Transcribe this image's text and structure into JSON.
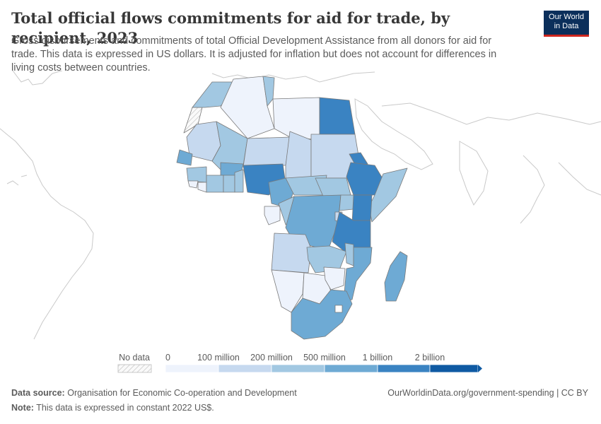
{
  "header": {
    "title": "Total official flows commitments for aid for trade, by recipient, 2023",
    "subtitle": "Gross disbursements and commitments of total Official Development Assistance from all donors for aid for trade. This data is expressed in US dollars. It is adjusted for inflation but does not account for differences in living costs between countries."
  },
  "logo": {
    "line1": "Our World",
    "line2": "in Data"
  },
  "legend": {
    "no_data_label": "No data",
    "tick_labels": [
      "0",
      "100 million",
      "200 million",
      "500 million",
      "1 billion",
      "2 billion"
    ],
    "colors": [
      "#eef3fc",
      "#c6d9ef",
      "#a2c8e2",
      "#6eaad4",
      "#3a83c2",
      "#0f5aa3"
    ]
  },
  "footer": {
    "source_label": "Data source:",
    "source_text": "Organisation for Economic Co-operation and Development",
    "note_label": "Note:",
    "note_text": "This data is expressed in constant 2022 US$.",
    "url": "OurWorldinData.org/government-spending | CC BY"
  },
  "colors": {
    "background": "#ffffff",
    "border": "#7a7a7a",
    "outline": "#c9c9c9",
    "brand": "#0b2f5b",
    "accent": "#ce261e"
  }
}
